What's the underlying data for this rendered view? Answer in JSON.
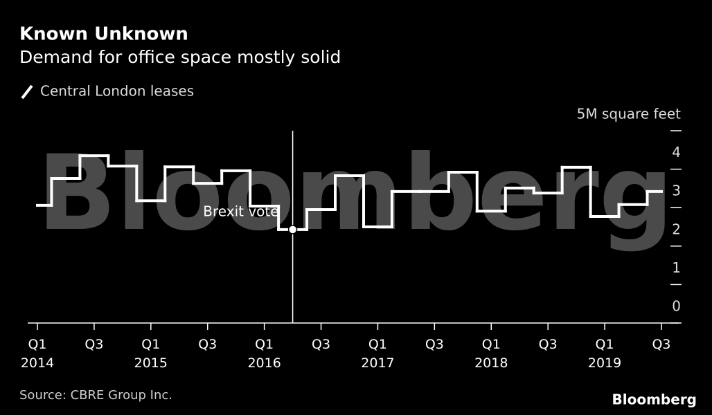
{
  "chart_data": {
    "type": "step-line",
    "title": "Known Unknown",
    "subtitle": "Demand for office space mostly solid",
    "watermark": "Bloomberg",
    "source": "Source: CBRE Group Inc.",
    "logo": "Bloomberg",
    "categories": [
      "Q1 2014",
      null,
      "Q3",
      null,
      "Q1 2015",
      null,
      "Q3",
      null,
      "Q1 2016",
      null,
      "Q3",
      null,
      "Q1 2017",
      null,
      "Q3",
      null,
      "Q1 2018",
      null,
      "Q3",
      null,
      "Q1 2019",
      null,
      "Q3"
    ],
    "series": [
      {
        "name": "Central London leases",
        "color": "#ffffff",
        "values": [
          3.06,
          3.76,
          4.35,
          4.08,
          3.18,
          4.06,
          3.63,
          3.96,
          3.04,
          2.43,
          2.95,
          3.83,
          2.5,
          3.42,
          3.42,
          3.92,
          2.91,
          3.51,
          3.38,
          4.05,
          2.77,
          3.08,
          3.42
        ]
      }
    ],
    "annotations": [
      {
        "text": "Brexit vote"
      }
    ],
    "ylim": [
      0,
      5
    ],
    "yticks": [
      0,
      1,
      2,
      3,
      4,
      {
        "value": 5,
        "label": "5M square feet"
      }
    ]
  }
}
